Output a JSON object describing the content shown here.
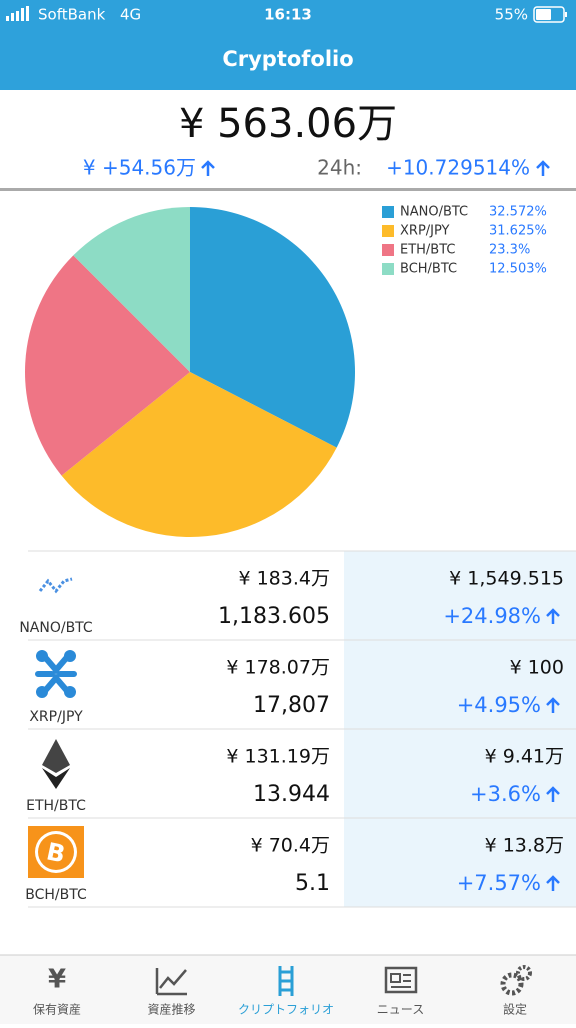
{
  "status": {
    "carrier": "SoftBank",
    "network": "4G",
    "time": "16:13",
    "battery": "55%"
  },
  "header": {
    "title": "Cryptofolio"
  },
  "summary": {
    "total": "¥ 563.06万",
    "change": "¥ +54.56万",
    "change_24h_label": "24h:",
    "change_24h": "+10.729514%"
  },
  "chart_data": {
    "type": "pie",
    "categories": [
      "NANO/BTC",
      "XRP/JPY",
      "ETH/BTC",
      "BCH/BTC"
    ],
    "values": [
      32.572,
      31.625,
      23.3,
      12.503
    ],
    "value_labels": [
      "32.572%",
      "31.625%",
      "23.3%",
      "12.503%"
    ],
    "colors": [
      "#2a9fd6",
      "#fdbb2a",
      "#ef7585",
      "#8ddcc5"
    ]
  },
  "holdings": [
    {
      "name": "NANO/BTC",
      "value": "¥ 183.4万",
      "amount": "1,183.605",
      "price": "¥ 1,549.515",
      "change": "+24.98%"
    },
    {
      "name": "XRP/JPY",
      "value": "¥ 178.07万",
      "amount": "17,807",
      "price": "¥ 100",
      "change": "+4.95%"
    },
    {
      "name": "ETH/BTC",
      "value": "¥ 131.19万",
      "amount": "13.944",
      "price": "¥ 9.41万",
      "change": "+3.6%"
    },
    {
      "name": "BCH/BTC",
      "value": "¥ 70.4万",
      "amount": "5.1",
      "price": "¥ 13.8万",
      "change": "+7.57%"
    }
  ],
  "tabs": [
    "保有資産",
    "資産推移",
    "クリプトフォリオ",
    "ニュース",
    "設定"
  ]
}
